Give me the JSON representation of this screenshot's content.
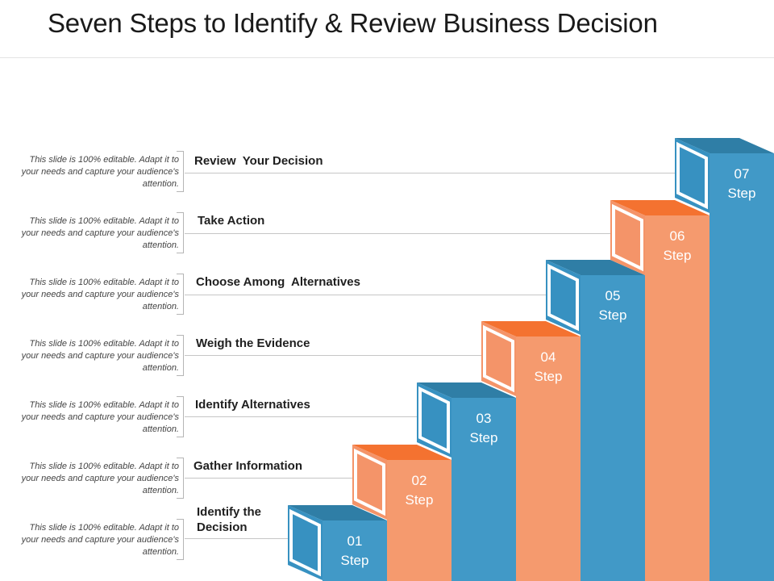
{
  "title": "Seven Steps to Identify & Review Business Decision",
  "colors": {
    "blue_front": "#4199c7",
    "blue_top": "#2f7ea6",
    "blue_side": "#3791c1",
    "orange_front": "#f59a6e",
    "orange_top": "#f47230",
    "orange_side": "#f49469"
  },
  "steps": [
    {
      "number": "01",
      "word": "Step",
      "label": "Identify the Decision",
      "description": "This slide is 100% editable. Adapt it to your needs and capture your audience's attention.",
      "color": "blue"
    },
    {
      "number": "02",
      "word": "Step",
      "label": "Gather Information",
      "description": "This slide is 100% editable. Adapt it to your needs and capture your audience's attention.",
      "color": "orange"
    },
    {
      "number": "03",
      "word": "Step",
      "label": "Identify Alternatives",
      "description": "This slide is 100% editable. Adapt it to your needs and capture your audience's attention.",
      "color": "blue"
    },
    {
      "number": "04",
      "word": "Step",
      "label": "Weigh the Evidence",
      "description": "This slide is 100% editable. Adapt it to your needs and capture your audience's attention.",
      "color": "orange"
    },
    {
      "number": "05",
      "word": "Step",
      "label": "Choose Among  Alternatives",
      "description": "This slide is 100% editable. Adapt it to your needs and capture your audience's attention.",
      "color": "blue"
    },
    {
      "number": "06",
      "word": "Step",
      "label": "Take Action",
      "description": "This slide is 100% editable. Adapt it to your needs and capture your audience's attention.",
      "color": "orange"
    },
    {
      "number": "07",
      "word": "Step",
      "label": "Review  Your Decision",
      "description": "This slide is 100% editable. Adapt it to your needs and capture your audience's attention.",
      "color": "blue"
    }
  ]
}
